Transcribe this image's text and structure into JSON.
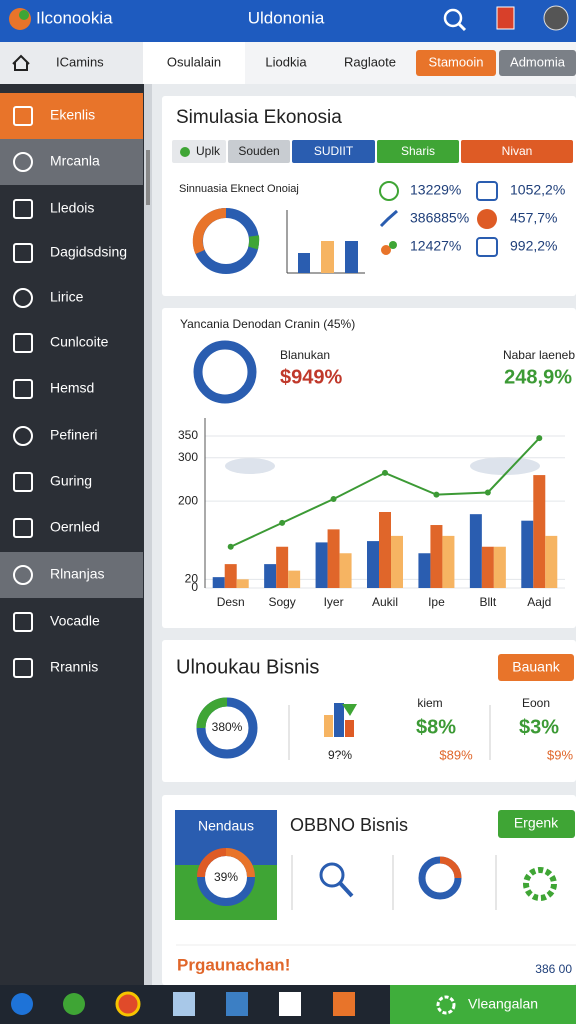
{
  "header": {
    "app_name": "Ilconookia",
    "title": "Uldononia"
  },
  "tabs": [
    "ICamins",
    "Osulalain",
    "Liodkia",
    "Raglaote",
    "Stamooin",
    "Admomia"
  ],
  "sidebar": [
    "Ekenlis",
    "Mrcanla",
    "Lledois",
    "Dagidsdsing",
    "Lirice",
    "Cunlcoite",
    "Hemsd",
    "Pefineri",
    "Guring",
    "Oernled",
    "Rlnanjas",
    "Vocadle",
    "Rrannis"
  ],
  "card1": {
    "title": "Simulasia Ekonosia",
    "filters": [
      "Uplk",
      "Souden",
      "SUDIIT",
      "Sharis",
      "Nivan"
    ],
    "subtitle": "Sinnuasia Eknect Onoiaj",
    "stats": [
      "13229%",
      "386885%",
      "12427%",
      "1052,2%",
      "457,7%",
      "992,2%"
    ]
  },
  "card2": {
    "title": "Yancania Denodan Cranin (45%)",
    "kpi_left": {
      "label": "Blanukan",
      "value": "$949%"
    },
    "kpi_right": {
      "label": "Nabar laeneb",
      "value": "248,9%"
    },
    "chart": {
      "type": "bar",
      "categories": [
        "Desn",
        "Sogy",
        "Iyer",
        "Aukil",
        "Ipe",
        "Bllt",
        "Aajd"
      ],
      "ylim": [
        0,
        350
      ],
      "yticks": [
        0,
        20,
        200,
        300,
        350
      ],
      "series": [
        {
          "color": "#2a5db0",
          "values": [
            25,
            55,
            105,
            108,
            80,
            170,
            155
          ]
        },
        {
          "color": "#e0662a",
          "values": [
            55,
            95,
            135,
            175,
            145,
            95,
            260
          ]
        },
        {
          "color": "#f6b462",
          "values": [
            20,
            40,
            80,
            120,
            120,
            95,
            120
          ]
        }
      ],
      "line": {
        "color": "#3c9a35",
        "values": [
          95,
          150,
          205,
          265,
          215,
          220,
          345
        ]
      }
    }
  },
  "card3": {
    "title": "Ulnoukau Bisnis",
    "button": "Bauank",
    "donut_label": "380%",
    "icon_label": "9?%",
    "kpi_a": {
      "label": "kiem",
      "value": "$8%",
      "sub": "$89%"
    },
    "kpi_b": {
      "label": "Eoon",
      "value": "$3%",
      "sub": "$9%"
    }
  },
  "card4": {
    "box_title": "Nendaus",
    "box_value": "39%",
    "title": "OBBNO Bisnis",
    "button": "Ergenk",
    "footer": "Prgaunachan!",
    "footer_value": "386 00"
  },
  "taskbar": {
    "button": "Vleangalan"
  }
}
